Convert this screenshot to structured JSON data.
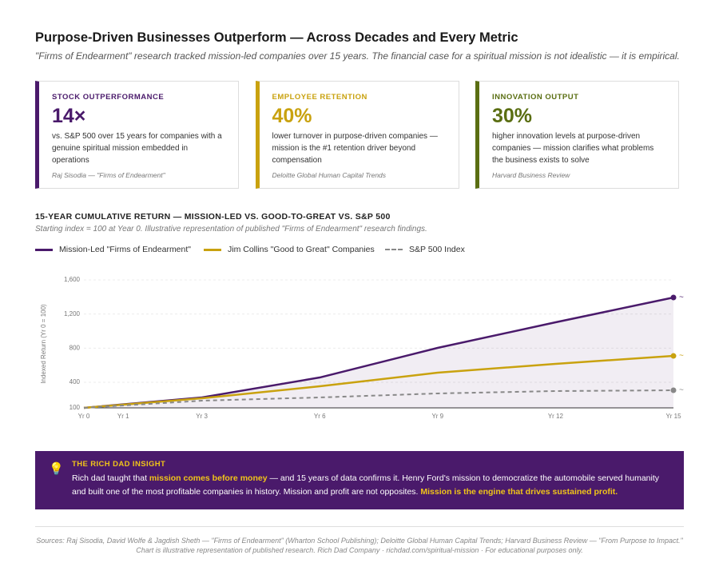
{
  "header": {
    "title": "Purpose-Driven Businesses Outperform — Across Decades and Every Metric",
    "subtitle": "\"Firms of Endearment\" research tracked mission-led companies over 15 years. The financial case for a spiritual mission is not idealistic — it is empirical."
  },
  "cards": [
    {
      "label": "STOCK OUTPERFORMANCE",
      "value": "14×",
      "description": "vs. S&P 500 over 15 years for companies with a genuine spiritual mission embedded in operations",
      "source": "Raj Sisodia — \"Firms of Endearment\"",
      "color": "#4a1a6b"
    },
    {
      "label": "EMPLOYEE RETENTION",
      "value": "40%",
      "description": "lower turnover in purpose-driven companies — mission is the #1 retention driver beyond compensation",
      "source": "Deloitte Global Human Capital Trends",
      "color": "#c9a20f"
    },
    {
      "label": "INNOVATION OUTPUT",
      "value": "30%",
      "description": "higher innovation levels at purpose-driven companies — mission clarifies what problems the business exists to solve",
      "source": "Harvard Business Review",
      "color": "#5a6e12"
    }
  ],
  "chart_data": {
    "type": "line",
    "title": "15-YEAR CUMULATIVE RETURN — MISSION-LED VS. GOOD-TO-GREAT VS. S&P 500",
    "subtitle": "Starting index = 100 at Year 0. Illustrative representation of published \"Firms of Endearment\" research findings.",
    "y_label": "Indexed Return (Yr 0 = 100)",
    "end_marker": "~",
    "x": [
      0,
      3,
      6,
      9,
      12,
      15
    ],
    "series": [
      {
        "name": "Mission-Led \"Firms of Endearment\"",
        "color": "#4a1a6b",
        "values": [
          100,
          222,
          456,
          803,
          1103,
          1394
        ],
        "fill": true
      },
      {
        "name": "Jim Collins \"Good to Great\" Companies",
        "color": "#c9a20f",
        "values": [
          100,
          212,
          353,
          512,
          616,
          709
        ]
      },
      {
        "name": "S&P 500 Index",
        "color": "#888888",
        "values": [
          100,
          184,
          222,
          269,
          297,
          306
        ],
        "dashed": true
      }
    ],
    "xlim": [
      0,
      15
    ],
    "xticks": [
      {
        "value": 0,
        "label": "Yr 0"
      },
      {
        "value": 1,
        "label": "Yr 1"
      },
      {
        "value": 3,
        "label": "Yr 3"
      },
      {
        "value": 6,
        "label": "Yr 6"
      },
      {
        "value": 9,
        "label": "Yr 9"
      },
      {
        "value": 12,
        "label": "Yr 12"
      },
      {
        "value": 15,
        "label": "Yr 15"
      }
    ],
    "ylim": [
      100,
      1600
    ],
    "yticks": [
      100,
      {
        "value": 400,
        "label": "400"
      },
      {
        "value": 800,
        "label": "800"
      },
      {
        "value": 1200,
        "label": "1,200"
      },
      {
        "value": 1600,
        "label": "1,600"
      }
    ],
    "grid": true
  },
  "insight": {
    "icon": "💡",
    "label": "THE RICH DAD INSIGHT",
    "parts": [
      {
        "text": "Rich dad taught that "
      },
      {
        "text": "mission comes before money",
        "highlight": true
      },
      {
        "text": " — and 15 years of data confirms it. Henry Ford's mission to democratize the automobile served humanity and built one of the most profitable companies in history. Mission and profit are not opposites. "
      },
      {
        "text": "Mission is the engine that drives sustained profit.",
        "highlight": true
      }
    ]
  },
  "footer": "Sources: Raj Sisodia, David Wolfe & Jagdish Sheth — \"Firms of Endearment\" (Wharton School Publishing); Deloitte Global Human Capital Trends; Harvard Business Review — \"From Purpose to Impact.\" Chart is illustrative representation of published research. Rich Dad Company · richdad.com/spiritual-mission · For educational purposes only."
}
